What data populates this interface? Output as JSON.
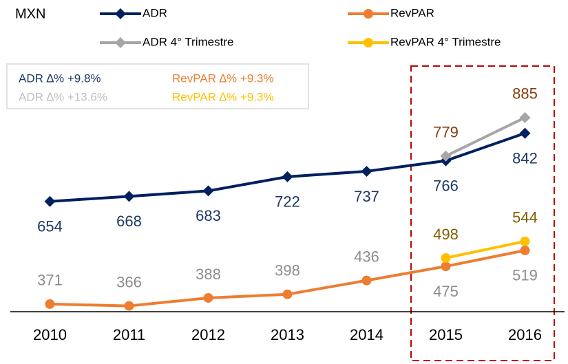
{
  "chart_data": {
    "type": "line",
    "unit_label": "MXN",
    "categories": [
      "2010",
      "2011",
      "2012",
      "2013",
      "2014",
      "2015",
      "2016"
    ],
    "series": [
      {
        "name": "ADR",
        "color": "#002060",
        "marker": "diamond",
        "label_color": "#1F3864",
        "values": [
          654,
          668,
          683,
          722,
          737,
          766,
          842
        ]
      },
      {
        "name": "RevPAR",
        "color": "#ED7D31",
        "marker": "circle",
        "label_color": "#8C8C8C",
        "values": [
          371,
          366,
          388,
          398,
          436,
          475,
          519
        ]
      },
      {
        "name": "ADR 4° Trimestre",
        "color": "#A6A6A6",
        "marker": "diamond",
        "label_color": "#843C0C",
        "values": [
          null,
          null,
          null,
          null,
          null,
          779,
          885
        ]
      },
      {
        "name": "RevPAR 4° Trimestre",
        "color": "#FFC000",
        "marker": "circle",
        "label_color": "#7F6000",
        "values": [
          null,
          null,
          null,
          null,
          null,
          498,
          544
        ]
      }
    ],
    "annotations": [
      {
        "text": "ADR ∆% +9.8%",
        "color": "#1F3864"
      },
      {
        "text": "RevPAR ∆% +9.3%",
        "color": "#ED7D31"
      },
      {
        "text": "ADR ∆% +13.6%",
        "color": "#BFBFBF"
      },
      {
        "text": "RevPAR ∆% +9.3%",
        "color": "#FFC000"
      }
    ],
    "ylim": [
      350,
      900
    ]
  }
}
